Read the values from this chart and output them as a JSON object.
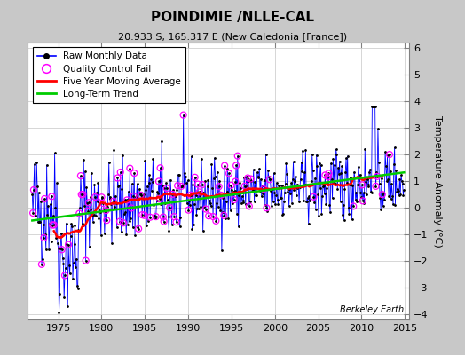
{
  "title": "POINDIMIE /NLLE-CAL",
  "subtitle": "20.933 S, 165.317 E (New Caledonia [France])",
  "ylabel": "Temperature Anomaly (°C)",
  "year_start": 1971.5,
  "year_end": 2015.5,
  "ylim": [
    -4.2,
    6.2
  ],
  "yticks": [
    -4,
    -3,
    -2,
    -1,
    0,
    1,
    2,
    3,
    4,
    5,
    6
  ],
  "xticks": [
    1975,
    1980,
    1985,
    1990,
    1995,
    2000,
    2005,
    2010,
    2015
  ],
  "fig_bg_color": "#c8c8c8",
  "plot_bg_color": "#ffffff",
  "raw_color": "#0000ff",
  "moving_avg_color": "#ff0000",
  "trend_color": "#00cc00",
  "qc_fail_color": "#ff00ff",
  "watermark": "Berkeley Earth",
  "legend_entries": [
    "Raw Monthly Data",
    "Quality Control Fail",
    "Five Year Moving Average",
    "Long-Term Trend"
  ],
  "grid_color": "#d0d0d0"
}
